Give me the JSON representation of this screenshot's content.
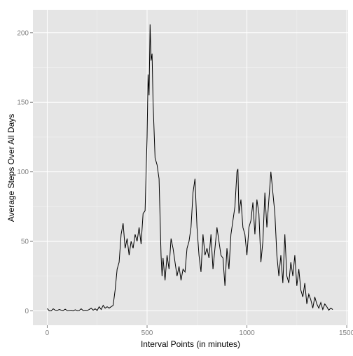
{
  "chart_data": {
    "type": "line",
    "x_label": "Interval Points (in minutes)",
    "y_label": "Average Steps Over All Days",
    "color": "#000000",
    "grid": true,
    "xlim": [
      -71.75,
      1506.75
    ],
    "xticks": [
      0,
      500,
      1000,
      1500
    ],
    "ylim": [
      -10.3,
      216.5
    ],
    "yticks": [
      0,
      50,
      100,
      150,
      200
    ],
    "x": [
      0,
      10,
      20,
      30,
      40,
      50,
      60,
      70,
      80,
      90,
      100,
      110,
      120,
      130,
      140,
      150,
      160,
      170,
      180,
      190,
      200,
      210,
      220,
      230,
      240,
      250,
      260,
      270,
      280,
      290,
      300,
      310,
      320,
      330,
      340,
      350,
      360,
      370,
      380,
      390,
      400,
      410,
      420,
      430,
      440,
      450,
      460,
      470,
      480,
      490,
      500,
      505,
      510,
      515,
      520,
      525,
      530,
      540,
      550,
      560,
      570,
      575,
      580,
      590,
      600,
      610,
      620,
      630,
      640,
      650,
      660,
      670,
      680,
      690,
      700,
      710,
      720,
      730,
      740,
      750,
      760,
      770,
      780,
      790,
      800,
      810,
      820,
      830,
      840,
      850,
      860,
      870,
      880,
      890,
      900,
      910,
      920,
      930,
      940,
      950,
      955,
      960,
      970,
      980,
      990,
      1000,
      1010,
      1020,
      1030,
      1040,
      1050,
      1060,
      1070,
      1080,
      1090,
      1100,
      1110,
      1120,
      1130,
      1140,
      1150,
      1160,
      1170,
      1180,
      1190,
      1200,
      1210,
      1220,
      1230,
      1240,
      1250,
      1260,
      1270,
      1280,
      1290,
      1300,
      1310,
      1320,
      1330,
      1340,
      1350,
      1360,
      1370,
      1380,
      1390,
      1400,
      1410,
      1420,
      1430
    ],
    "values": [
      1.7,
      0.1,
      0.1,
      1.5,
      0.5,
      0.3,
      1.0,
      0.5,
      0.3,
      1.2,
      0.2,
      0.3,
      0.5,
      0.1,
      0.8,
      0.2,
      0.3,
      1.5,
      0.2,
      0.5,
      0.3,
      1.0,
      2.0,
      0.5,
      1.5,
      0.3,
      3,
      1,
      4,
      2,
      3,
      2,
      3,
      4,
      15,
      30,
      35,
      55,
      63,
      45,
      52,
      40,
      50,
      45,
      55,
      50,
      60,
      48,
      70,
      72,
      125,
      170,
      155,
      206,
      180,
      185,
      150,
      110,
      105,
      95,
      40,
      25,
      38,
      22,
      40,
      30,
      52,
      45,
      35,
      25,
      32,
      22,
      30,
      28,
      45,
      50,
      60,
      85,
      95,
      60,
      40,
      28,
      55,
      40,
      45,
      38,
      55,
      30,
      45,
      60,
      50,
      40,
      38,
      18,
      45,
      30,
      55,
      65,
      75,
      100,
      102,
      70,
      80,
      60,
      55,
      40,
      60,
      65,
      78,
      55,
      80,
      70,
      35,
      50,
      85,
      60,
      80,
      100,
      85,
      70,
      40,
      25,
      40,
      20,
      55,
      25,
      20,
      35,
      25,
      40,
      18,
      30,
      15,
      10,
      20,
      5,
      12,
      8,
      2,
      10,
      5,
      2,
      6,
      1,
      5,
      3,
      0.5,
      2,
      1
    ]
  }
}
